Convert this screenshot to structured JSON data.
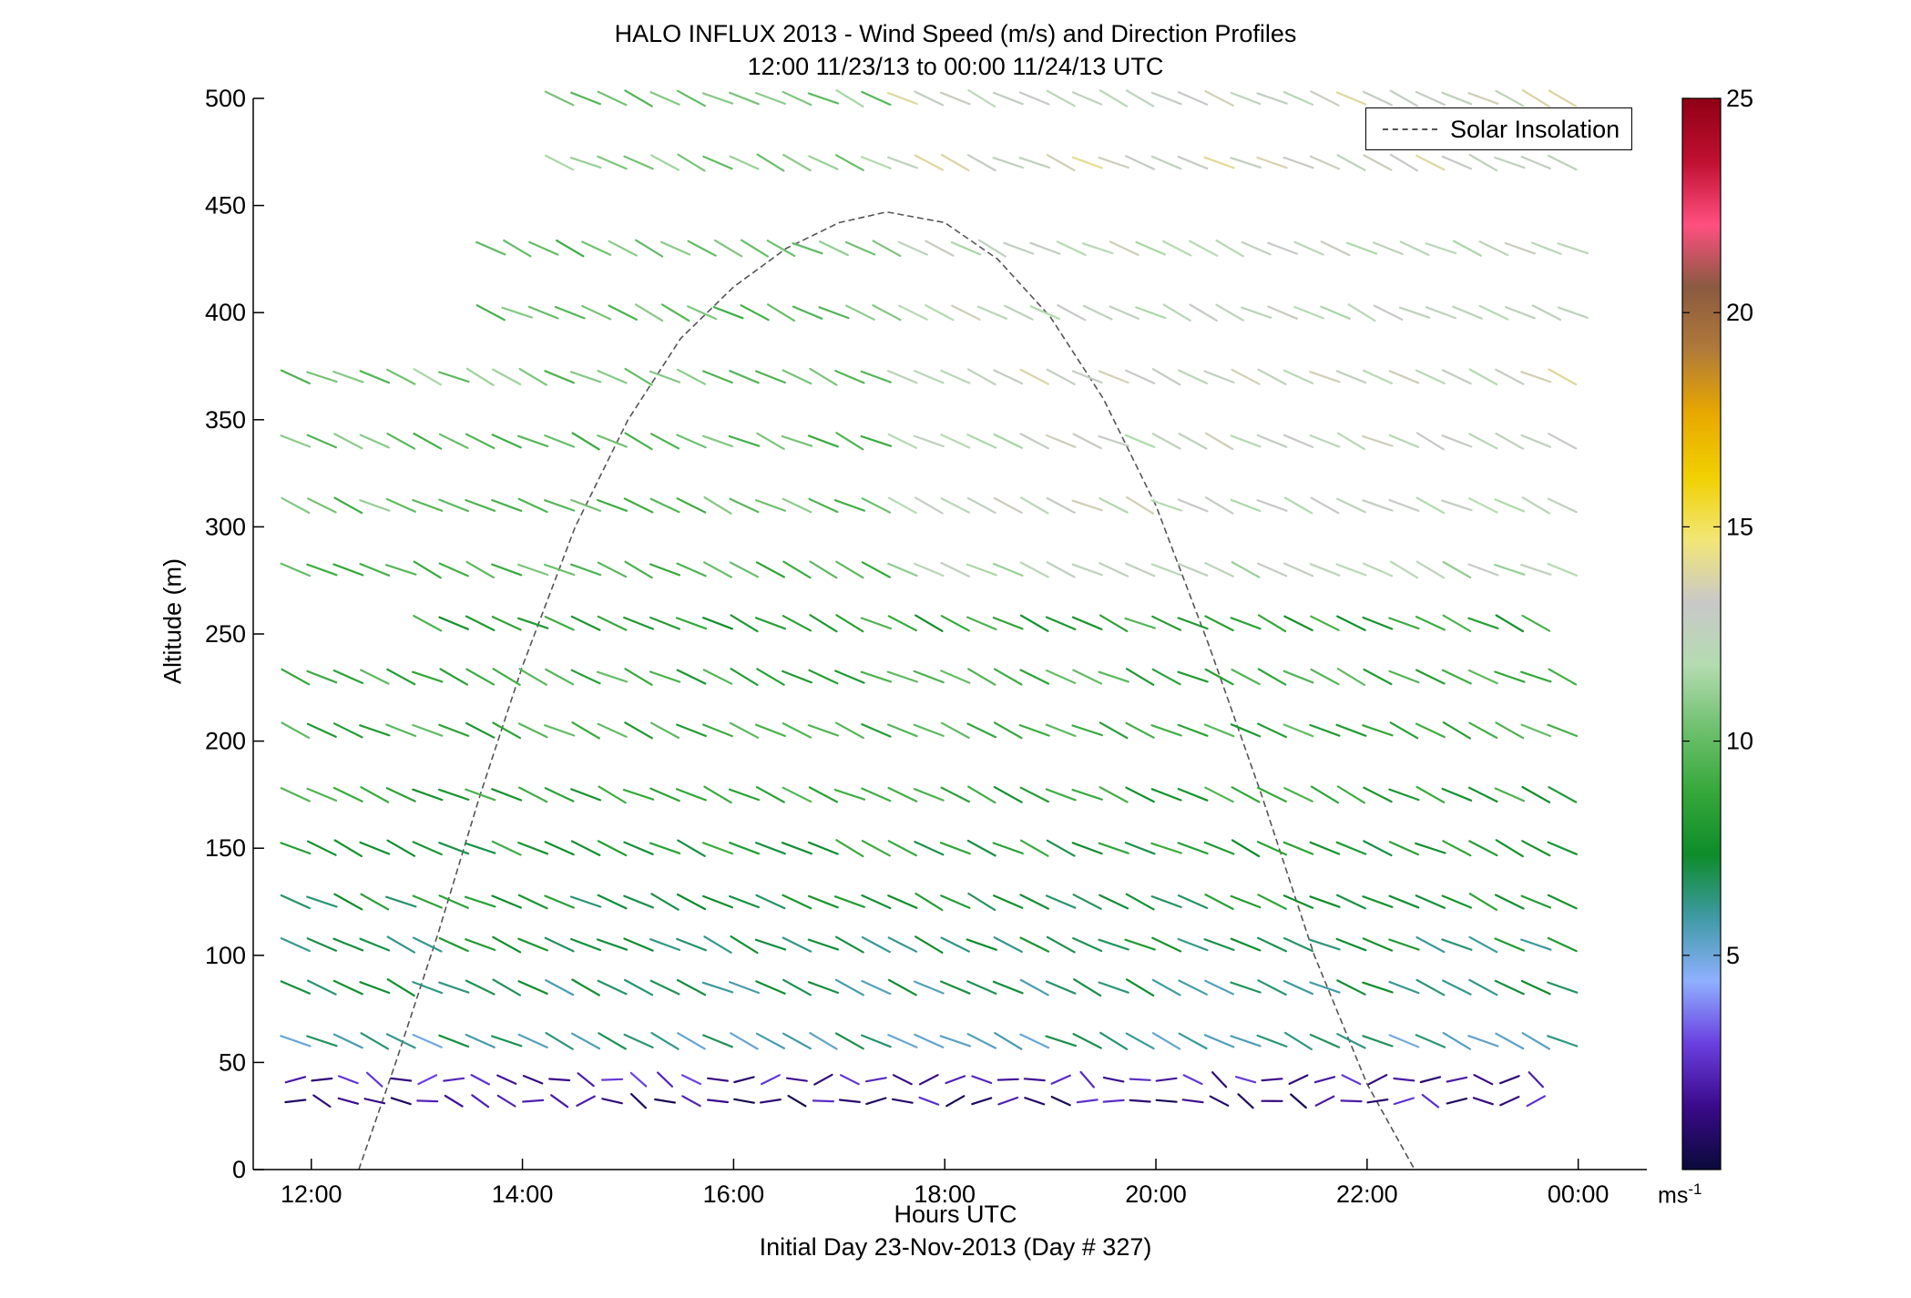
{
  "chart_data": {
    "type": "wind_barbs",
    "title": "HALO INFLUX 2013 - Wind Speed (m/s) and Direction Profiles",
    "subtitle": "12:00 11/23/13 to 00:00 11/24/13  UTC",
    "xlabel": "Hours UTC",
    "xlabel2": "Initial Day 23-Nov-2013 (Day # 327)",
    "ylabel": "Altitude (m)",
    "xlim": [
      11.45,
      24.65
    ],
    "ylim": [
      0,
      500
    ],
    "xticks": [
      12,
      14,
      16,
      18,
      20,
      22,
      24
    ],
    "xtick_labels": [
      "12:00",
      "14:00",
      "16:00",
      "18:00",
      "20:00",
      "22:00",
      "00:00"
    ],
    "yticks": [
      0,
      50,
      100,
      150,
      200,
      250,
      300,
      350,
      400,
      450,
      500
    ],
    "ytick_labels": [
      "0",
      "50",
      "100",
      "150",
      "200",
      "250",
      "300",
      "350",
      "400",
      "450",
      "500"
    ],
    "legend": {
      "entries": [
        "Solar Insolation"
      ],
      "placement": "top-right"
    },
    "colorbar": {
      "range": [
        0,
        25
      ],
      "ticks": [
        5,
        10,
        15,
        20,
        25
      ],
      "tick_labels": [
        "5",
        "10",
        "15",
        "20",
        "25"
      ],
      "unit_base": "ms",
      "unit_sup": "-1",
      "colors": [
        "#0a0a3a",
        "#3a0a8a",
        "#6a40e0",
        "#8fb0ff",
        "#3f9aa5",
        "#0e8c2a",
        "#36a83a",
        "#6fc06f",
        "#b4dcb0",
        "#c8c8c8",
        "#f2e676",
        "#f0d000",
        "#e8a800",
        "#b07a3a",
        "#8a5a40",
        "#ff4f80",
        "#c01030",
        "#900015"
      ]
    },
    "solar_insolation": {
      "x": [
        12.45,
        12.8,
        13.2,
        13.6,
        14.0,
        14.5,
        15.0,
        15.5,
        16.0,
        16.5,
        17.0,
        17.45,
        18.0,
        18.5,
        19.0,
        19.5,
        20.0,
        20.5,
        21.0,
        21.5,
        22.0,
        22.45
      ],
      "y": [
        0,
        50,
        110,
        175,
        235,
        300,
        350,
        388,
        412,
        430,
        442,
        447,
        442,
        425,
        398,
        360,
        310,
        245,
        175,
        100,
        40,
        0
      ]
    },
    "wind_rows": [
      {
        "alt": 500,
        "t0": 14.35,
        "t1": 24.0,
        "speed": 10.5
      },
      {
        "alt": 470,
        "t0": 14.35,
        "t1": 24.0,
        "speed": 11.0
      },
      {
        "alt": 430,
        "t0": 13.7,
        "t1": 24.0,
        "speed": 10.0
      },
      {
        "alt": 400,
        "t0": 13.7,
        "t1": 24.0,
        "speed": 10.0
      },
      {
        "alt": 370,
        "t0": 11.85,
        "t1": 24.0,
        "speed": 10.5
      },
      {
        "alt": 340,
        "t0": 11.85,
        "t1": 24.0,
        "speed": 10.0
      },
      {
        "alt": 310,
        "t0": 11.85,
        "t1": 24.0,
        "speed": 10.0
      },
      {
        "alt": 280,
        "t0": 11.85,
        "t1": 24.0,
        "speed": 9.5
      },
      {
        "alt": 255,
        "t0": 13.1,
        "t1": 23.7,
        "speed": 8.5
      },
      {
        "alt": 230,
        "t0": 11.85,
        "t1": 24.0,
        "speed": 9.0
      },
      {
        "alt": 205,
        "t0": 11.85,
        "t1": 24.0,
        "speed": 9.0
      },
      {
        "alt": 175,
        "t0": 11.85,
        "t1": 24.0,
        "speed": 8.5
      },
      {
        "alt": 150,
        "t0": 11.85,
        "t1": 24.0,
        "speed": 8.0
      },
      {
        "alt": 125,
        "t0": 11.85,
        "t1": 24.0,
        "speed": 7.5
      },
      {
        "alt": 105,
        "t0": 11.85,
        "t1": 24.0,
        "speed": 7.0
      },
      {
        "alt": 85,
        "t0": 11.85,
        "t1": 24.0,
        "speed": 6.5
      },
      {
        "alt": 60,
        "t0": 11.85,
        "t1": 24.0,
        "speed": 6.0
      },
      {
        "alt": 42,
        "t0": 11.85,
        "t1": 23.7,
        "speed": 2.0
      },
      {
        "alt": 32,
        "t0": 11.85,
        "t1": 23.7,
        "speed": 1.5
      }
    ]
  }
}
